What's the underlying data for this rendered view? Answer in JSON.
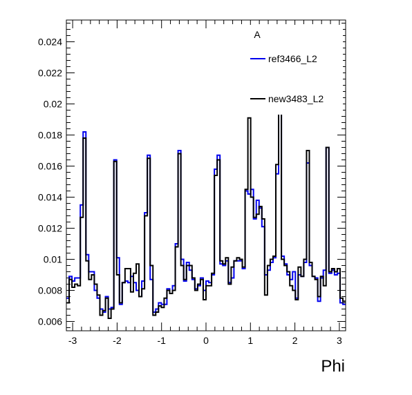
{
  "chart_data": {
    "type": "line",
    "title": "",
    "xlabel": "Phi",
    "ylabel": "",
    "xlim": [
      -3.1416,
      3.1416
    ],
    "ylim": [
      0.0054,
      0.0254
    ],
    "grid": false,
    "legend_position": "top-right",
    "legend_header": "A",
    "x_ticks": [
      -3,
      -2,
      -1,
      0,
      1,
      2,
      3
    ],
    "y_ticks": [
      0.006,
      0.008,
      0.01,
      0.012,
      0.014,
      0.016,
      0.018,
      0.02,
      0.022,
      0.024
    ],
    "y_tick_labels": [
      "0.006",
      "0.008",
      "0.01",
      "0.012",
      "0.014",
      "0.016",
      "0.018",
      "0.02",
      "0.022",
      "0.024"
    ],
    "x_tick_labels": [
      "-3",
      "-2",
      "-1",
      "0",
      "1",
      "2",
      "3"
    ],
    "bins": 100,
    "series": [
      {
        "name": "ref3466_L2",
        "color": "#0000ee",
        "values": [
          0.0075,
          0.0089,
          0.0086,
          0.0088,
          0.0088,
          0.0135,
          0.0182,
          0.0103,
          0.0092,
          0.0092,
          0.008,
          0.0075,
          0.0068,
          0.0066,
          0.0076,
          0.0068,
          0.0069,
          0.0164,
          0.0101,
          0.0071,
          0.0085,
          0.0086,
          0.0085,
          0.0089,
          0.0085,
          0.008,
          0.0076,
          0.0086,
          0.013,
          0.0167,
          0.0087,
          0.0066,
          0.0068,
          0.0072,
          0.0071,
          0.0071,
          0.0081,
          0.0078,
          0.0083,
          0.011,
          0.017,
          0.01,
          0.0086,
          0.0098,
          0.0093,
          0.0087,
          0.0081,
          0.0083,
          0.0088,
          0.008,
          0.0086,
          0.0085,
          0.009,
          0.0158,
          0.0167,
          0.0097,
          0.0096,
          0.0099,
          0.0085,
          0.0088,
          0.0099,
          0.0099,
          0.0099,
          0.0094,
          0.0144,
          0.0142,
          0.0145,
          0.0126,
          0.0138,
          0.0133,
          0.0121,
          0.009,
          0.0093,
          0.0098,
          0.0101,
          0.0155,
          0.0196,
          0.0102,
          0.0097,
          0.009,
          0.0087,
          0.0092,
          0.0075,
          0.009,
          0.0089,
          0.0098,
          0.0162,
          0.0096,
          0.0089,
          0.0088,
          0.0073,
          0.0088,
          0.0093,
          0.0172,
          0.0091,
          0.0093,
          0.009,
          0.0091,
          0.0072,
          0.0071
        ]
      },
      {
        "name": "new3483_L2",
        "color": "#000000",
        "values": [
          0.0072,
          0.0087,
          0.0082,
          0.0084,
          0.0083,
          0.0127,
          0.0178,
          0.0099,
          0.0087,
          0.009,
          0.0084,
          0.0077,
          0.0064,
          0.0067,
          0.0075,
          0.0062,
          0.0068,
          0.0163,
          0.009,
          0.0072,
          0.0085,
          0.0094,
          0.0094,
          0.0079,
          0.0091,
          0.0097,
          0.0076,
          0.0081,
          0.0128,
          0.0165,
          0.0096,
          0.0064,
          0.0066,
          0.007,
          0.0069,
          0.0075,
          0.008,
          0.0078,
          0.008,
          0.0108,
          0.0168,
          0.0096,
          0.0087,
          0.0096,
          0.0096,
          0.0088,
          0.008,
          0.0084,
          0.0087,
          0.0074,
          0.0083,
          0.0083,
          0.0091,
          0.0154,
          0.0164,
          0.0099,
          0.0097,
          0.0101,
          0.0084,
          0.0095,
          0.0099,
          0.0101,
          0.01,
          0.0095,
          0.0145,
          0.0191,
          0.014,
          0.0127,
          0.0129,
          0.0134,
          0.0126,
          0.0077,
          0.0096,
          0.01,
          0.0102,
          0.0161,
          0.0202,
          0.01,
          0.0096,
          0.0092,
          0.0083,
          0.008,
          0.0074,
          0.0095,
          0.0089,
          0.01,
          0.017,
          0.0098,
          0.0089,
          0.0087,
          0.0076,
          0.0089,
          0.0083,
          0.0172,
          0.0092,
          0.0094,
          0.0092,
          0.0094,
          0.0075,
          0.0073
        ]
      }
    ]
  }
}
